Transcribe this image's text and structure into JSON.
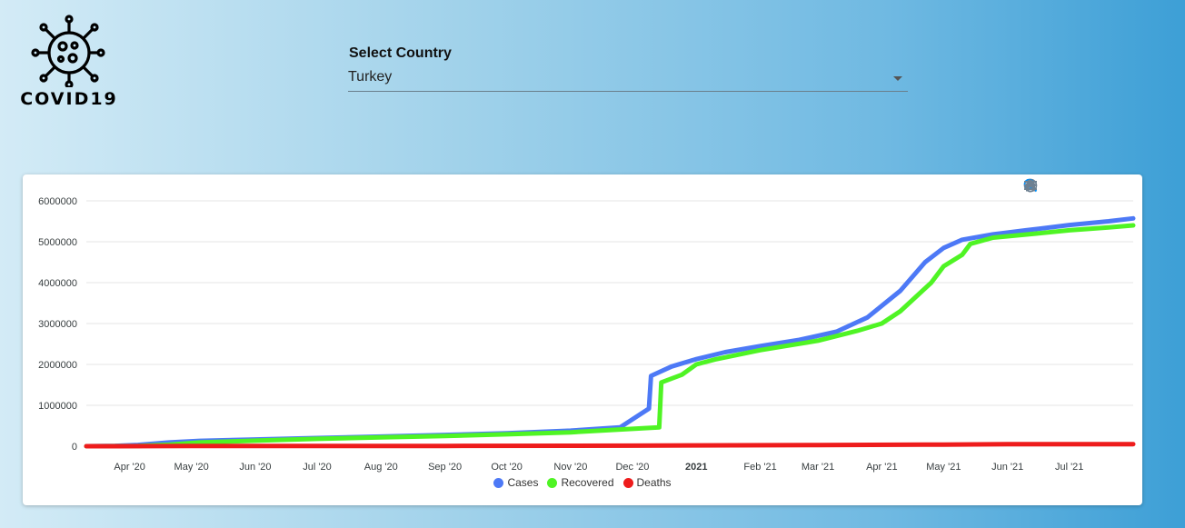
{
  "logo": {
    "text": "COVID19",
    "icon": "virus-icon"
  },
  "country_select": {
    "label": "Select Country",
    "value": "Turkey",
    "options": [
      "Turkey"
    ]
  },
  "toolbar": {
    "icons": [
      "zoom-in-icon",
      "zoom-out-icon",
      "zoom-select-icon",
      "pan-hand-icon",
      "home-reset-icon",
      "menu-icon"
    ]
  },
  "colors": {
    "cases": "#4d79f6",
    "recovered": "#4ff424",
    "deaths": "#ee1c1c"
  },
  "chart_data": {
    "type": "line",
    "title": "",
    "xlabel": "",
    "ylabel": "",
    "ylim": [
      0,
      6000000
    ],
    "yticks": [
      0,
      1000000,
      2000000,
      3000000,
      4000000,
      5000000,
      6000000
    ],
    "xlim": [
      "2020-03-11",
      "2021-08-01"
    ],
    "xticks": [
      {
        "date": "2020-04-01",
        "label": "Apr '20"
      },
      {
        "date": "2020-05-01",
        "label": "May '20"
      },
      {
        "date": "2020-06-01",
        "label": "Jun '20"
      },
      {
        "date": "2020-07-01",
        "label": "Jul '20"
      },
      {
        "date": "2020-08-01",
        "label": "Aug '20"
      },
      {
        "date": "2020-09-01",
        "label": "Sep '20"
      },
      {
        "date": "2020-10-01",
        "label": "Oct '20"
      },
      {
        "date": "2020-11-01",
        "label": "Nov '20"
      },
      {
        "date": "2020-12-01",
        "label": "Dec '20"
      },
      {
        "date": "2021-01-01",
        "label": "2021",
        "bold": true
      },
      {
        "date": "2021-02-01",
        "label": "Feb '21"
      },
      {
        "date": "2021-03-01",
        "label": "Mar '21"
      },
      {
        "date": "2021-04-01",
        "label": "Apr '21"
      },
      {
        "date": "2021-05-01",
        "label": "May '21"
      },
      {
        "date": "2021-06-01",
        "label": "Jun '21"
      },
      {
        "date": "2021-07-01",
        "label": "Jul '21"
      }
    ],
    "grid": true,
    "legend": "bottom-center",
    "series": [
      {
        "name": "Cases",
        "points": [
          [
            "2020-03-11",
            0
          ],
          [
            "2020-03-25",
            10000
          ],
          [
            "2020-04-05",
            30000
          ],
          [
            "2020-04-20",
            90000
          ],
          [
            "2020-05-05",
            130000
          ],
          [
            "2020-06-01",
            165000
          ],
          [
            "2020-07-01",
            200000
          ],
          [
            "2020-08-01",
            235000
          ],
          [
            "2020-09-01",
            275000
          ],
          [
            "2020-10-01",
            315000
          ],
          [
            "2020-11-01",
            380000
          ],
          [
            "2020-11-25",
            460000
          ],
          [
            "2020-12-09",
            920000
          ],
          [
            "2020-12-10",
            1720000
          ],
          [
            "2020-12-20",
            1950000
          ],
          [
            "2021-01-01",
            2130000
          ],
          [
            "2021-01-15",
            2300000
          ],
          [
            "2021-02-01",
            2450000
          ],
          [
            "2021-02-20",
            2600000
          ],
          [
            "2021-03-10",
            2800000
          ],
          [
            "2021-03-25",
            3150000
          ],
          [
            "2021-04-10",
            3800000
          ],
          [
            "2021-04-22",
            4500000
          ],
          [
            "2021-05-01",
            4850000
          ],
          [
            "2021-05-10",
            5050000
          ],
          [
            "2021-05-25",
            5180000
          ],
          [
            "2021-06-10",
            5280000
          ],
          [
            "2021-07-01",
            5410000
          ],
          [
            "2021-07-20",
            5500000
          ],
          [
            "2021-08-01",
            5570000
          ]
        ]
      },
      {
        "name": "Recovered",
        "points": [
          [
            "2020-03-11",
            0
          ],
          [
            "2020-04-05",
            5000
          ],
          [
            "2020-04-20",
            35000
          ],
          [
            "2020-05-05",
            90000
          ],
          [
            "2020-06-01",
            135000
          ],
          [
            "2020-07-01",
            180000
          ],
          [
            "2020-08-01",
            215000
          ],
          [
            "2020-09-01",
            250000
          ],
          [
            "2020-10-01",
            290000
          ],
          [
            "2020-11-01",
            340000
          ],
          [
            "2020-11-25",
            410000
          ],
          [
            "2020-12-14",
            460000
          ],
          [
            "2020-12-15",
            1560000
          ],
          [
            "2020-12-25",
            1750000
          ],
          [
            "2021-01-01",
            2000000
          ],
          [
            "2021-01-10",
            2120000
          ],
          [
            "2021-02-01",
            2350000
          ],
          [
            "2021-03-01",
            2580000
          ],
          [
            "2021-03-20",
            2820000
          ],
          [
            "2021-04-01",
            3000000
          ],
          [
            "2021-04-10",
            3300000
          ],
          [
            "2021-04-25",
            4000000
          ],
          [
            "2021-05-01",
            4400000
          ],
          [
            "2021-05-10",
            4680000
          ],
          [
            "2021-05-14",
            4950000
          ],
          [
            "2021-05-25",
            5100000
          ],
          [
            "2021-06-15",
            5200000
          ],
          [
            "2021-07-01",
            5280000
          ],
          [
            "2021-07-20",
            5350000
          ],
          [
            "2021-08-01",
            5400000
          ]
        ]
      },
      {
        "name": "Deaths",
        "points": [
          [
            "2020-03-11",
            0
          ],
          [
            "2020-05-01",
            3400
          ],
          [
            "2020-07-01",
            5300
          ],
          [
            "2020-09-01",
            6900
          ],
          [
            "2020-11-01",
            10800
          ],
          [
            "2020-12-01",
            14000
          ],
          [
            "2021-01-01",
            21000
          ],
          [
            "2021-03-01",
            29000
          ],
          [
            "2021-05-01",
            40000
          ],
          [
            "2021-06-01",
            48000
          ],
          [
            "2021-08-01",
            52000
          ]
        ]
      }
    ]
  }
}
